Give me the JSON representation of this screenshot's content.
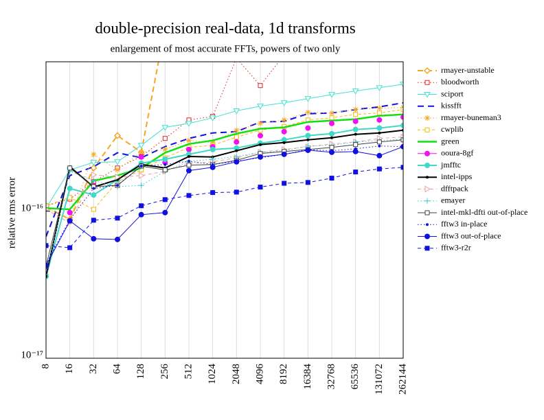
{
  "chart_data": {
    "type": "line",
    "title": "double-precision real-data, 1d transforms",
    "subtitle": "enlargement of most accurate FFTs, powers of two only",
    "y_label": "relative rms error",
    "log_y": true,
    "grid_x": true,
    "categories": [
      "8",
      "16",
      "32",
      "64",
      "128",
      "256",
      "512",
      "1024",
      "2048",
      "4096",
      "8192",
      "16384",
      "32768",
      "65536",
      "131072",
      "262144"
    ],
    "ylim": [
      1e-17,
      1.04e-15
    ],
    "yticks": [
      {
        "value": 1e-17,
        "label": "10⁻¹⁷"
      },
      {
        "value": 1e-16,
        "label": "10⁻¹⁶"
      }
    ],
    "legend_position": "right",
    "series": [
      {
        "name": "rmayer-unstable",
        "color": "#f5a623",
        "dash": "8,5",
        "width": 2,
        "marker": "diamond",
        "values": [
          1.07e-16,
          8.8e-17,
          1.97e-16,
          3.27e-16,
          2.52e-16,
          1.79e-15,
          null,
          null,
          null,
          null,
          null,
          null,
          null,
          null,
          null,
          null
        ]
      },
      {
        "name": "bloodworth",
        "color": "#e02020",
        "dash": "1.5,3",
        "width": 1,
        "marker": "square-open",
        "values": [
          1.09e-16,
          1.21e-16,
          1.59e-16,
          1.97e-16,
          2.36e-16,
          3.13e-16,
          4.18e-16,
          4.42e-16,
          1.1e-15,
          7.16e-16,
          1.16e-15,
          null,
          null,
          null,
          null,
          null
        ]
      },
      {
        "name": "sciport",
        "color": "#40e0d0",
        "dash": "",
        "width": 1,
        "marker": "triangle-down",
        "values": [
          1.05e-16,
          1.91e-16,
          2.15e-16,
          2.17e-16,
          2.81e-16,
          3.72e-16,
          3.96e-16,
          4.32e-16,
          4.82e-16,
          5.19e-16,
          5.47e-16,
          5.84e-16,
          6.23e-16,
          6.58e-16,
          6.93e-16,
          7.32e-16
        ]
      },
      {
        "name": "kissfft",
        "color": "#1010e0",
        "dash": "9,6",
        "width": 2,
        "marker": "none",
        "values": [
          6.72e-17,
          1.75e-16,
          2.01e-16,
          2.5e-16,
          2.31e-16,
          2.75e-16,
          3.13e-16,
          3.41e-16,
          3.48e-16,
          4.05e-16,
          4.09e-16,
          4.61e-16,
          4.66e-16,
          4.92e-16,
          5.13e-16,
          5.47e-16
        ]
      },
      {
        "name": "rmayer-buneman3",
        "color": "#f5a623",
        "dash": "1.5,3",
        "width": 1,
        "marker": "star",
        "values": [
          1.05e-16,
          8.8e-17,
          2.44e-16,
          1.91e-16,
          2.52e-16,
          2.63e-16,
          3.03e-16,
          2.93e-16,
          3.56e-16,
          3.96e-16,
          4.18e-16,
          4.71e-16,
          4.66e-16,
          4.92e-16,
          5.03e-16,
          5.08e-16
        ]
      },
      {
        "name": "cwplib",
        "color": "#f5b800",
        "dash": "4,3",
        "width": 1,
        "marker": "square-open",
        "values": [
          1.09e-16,
          1.24e-16,
          1.03e-16,
          1.59e-16,
          1.91e-16,
          2.31e-16,
          2.72e-16,
          2.81e-16,
          3.2e-16,
          3.56e-16,
          3.76e-16,
          4.18e-16,
          4.32e-16,
          4.56e-16,
          4.66e-16,
          4.92e-16
        ]
      },
      {
        "name": "green",
        "color": "#10e010",
        "dash": "",
        "width": 2.5,
        "marker": "none",
        "values": [
          1.05e-16,
          1.03e-16,
          1.61e-16,
          1.75e-16,
          1.97e-16,
          2.5e-16,
          2.87e-16,
          3.03e-16,
          3.37e-16,
          3.64e-16,
          3.72e-16,
          4.05e-16,
          4.14e-16,
          4.23e-16,
          4.46e-16,
          4.56e-16
        ]
      },
      {
        "name": "ooura-8gf",
        "color": "#f010f0",
        "dash": "",
        "width": 0,
        "marker": "circle",
        "values": [
          4.23e-17,
          9.79e-17,
          1.5e-16,
          1.64e-16,
          2.34e-16,
          2.15e-16,
          2.63e-16,
          2.75e-16,
          2.96e-16,
          3.27e-16,
          3.48e-16,
          3.68e-16,
          3.96e-16,
          4.09e-16,
          4.18e-16,
          4.37e-16
        ]
      },
      {
        "name": "jmfftc",
        "color": "#40d8c8",
        "dash": "",
        "width": 2,
        "marker": "circle",
        "values": [
          3.6e-17,
          1.43e-16,
          1.29e-16,
          1.64e-16,
          2.12e-16,
          2.26e-16,
          2.44e-16,
          2.63e-16,
          2.69e-16,
          2.9e-16,
          3.06e-16,
          3.27e-16,
          3.37e-16,
          3.6e-16,
          3.68e-16,
          3.84e-16
        ]
      },
      {
        "name": "intel-ipps",
        "color": "#000000",
        "dash": "",
        "width": 2,
        "marker": "dot",
        "values": [
          3.6e-17,
          2.01e-16,
          1.46e-16,
          1.64e-16,
          2.08e-16,
          1.97e-16,
          2.36e-16,
          2.34e-16,
          2.58e-16,
          2.84e-16,
          2.93e-16,
          3.06e-16,
          3.16e-16,
          3.34e-16,
          3.41e-16,
          3.56e-16
        ]
      },
      {
        "name": "dfftpack",
        "color": "#e8a0a0",
        "dash": "5,4",
        "width": 1,
        "marker": "triangle-right",
        "values": [
          1.03e-16,
          8.33e-17,
          1.77e-16,
          1.71e-16,
          1.75e-16,
          1.87e-16,
          2.12e-16,
          2.17e-16,
          2.31e-16,
          2.52e-16,
          2.63e-16,
          2.75e-16,
          2.87e-16,
          2.96e-16,
          3.13e-16,
          3.2e-16
        ]
      },
      {
        "name": "emayer",
        "color": "#30c8d0",
        "dash": "1.5,3",
        "width": 1,
        "marker": "plus",
        "values": [
          3.72e-17,
          1.87e-16,
          1.62e-16,
          1.47e-16,
          1.5e-16,
          1.87e-16,
          2.19e-16,
          2.26e-16,
          2.36e-16,
          2.52e-16,
          2.58e-16,
          2.78e-16,
          2.81e-16,
          2.96e-16,
          3.03e-16,
          3.09e-16
        ]
      },
      {
        "name": "intel-mkl-dfti out-of-place",
        "color": "#404040",
        "dash": "",
        "width": 1,
        "marker": "square-open",
        "values": [
          4.23e-17,
          1.97e-16,
          1.47e-16,
          1.5e-16,
          2.03e-16,
          1.91e-16,
          2.06e-16,
          2.08e-16,
          2.22e-16,
          2.47e-16,
          2.55e-16,
          2.63e-16,
          2.72e-16,
          2.84e-16,
          2.96e-16,
          3.06e-16
        ]
      },
      {
        "name": "fftw3 in-place",
        "color": "#1010e0",
        "dash": "1.5,3",
        "width": 1,
        "marker": "dot",
        "values": [
          4.37e-17,
          8.79e-17,
          1.43e-16,
          1.5e-16,
          2.03e-16,
          2.08e-16,
          2.19e-16,
          2.08e-16,
          2.19e-16,
          2.31e-16,
          2.44e-16,
          2.63e-16,
          2.58e-16,
          2.66e-16,
          2.78e-16,
          2.75e-16
        ]
      },
      {
        "name": "fftw3 out-of-place",
        "color": "#1010e0",
        "dash": "",
        "width": 1,
        "marker": "circle",
        "values": [
          4.27e-17,
          8.6e-17,
          6.5e-17,
          6.43e-17,
          9.48e-17,
          9.79e-17,
          1.89e-16,
          1.99e-16,
          2.17e-16,
          2.34e-16,
          2.44e-16,
          2.6e-16,
          2.52e-16,
          2.55e-16,
          2.39e-16,
          2.75e-16
        ]
      },
      {
        "name": "fftw3-r2r",
        "color": "#1010e0",
        "dash": "5,4",
        "width": 1,
        "marker": "square",
        "values": [
          5.84e-17,
          5.65e-17,
          8.69e-17,
          8.98e-17,
          1.09e-16,
          1.2e-16,
          1.28e-16,
          1.34e-16,
          1.35e-16,
          1.46e-16,
          1.55e-16,
          1.57e-16,
          1.68e-16,
          1.85e-16,
          1.94e-16,
          1.99e-16
        ]
      }
    ]
  }
}
